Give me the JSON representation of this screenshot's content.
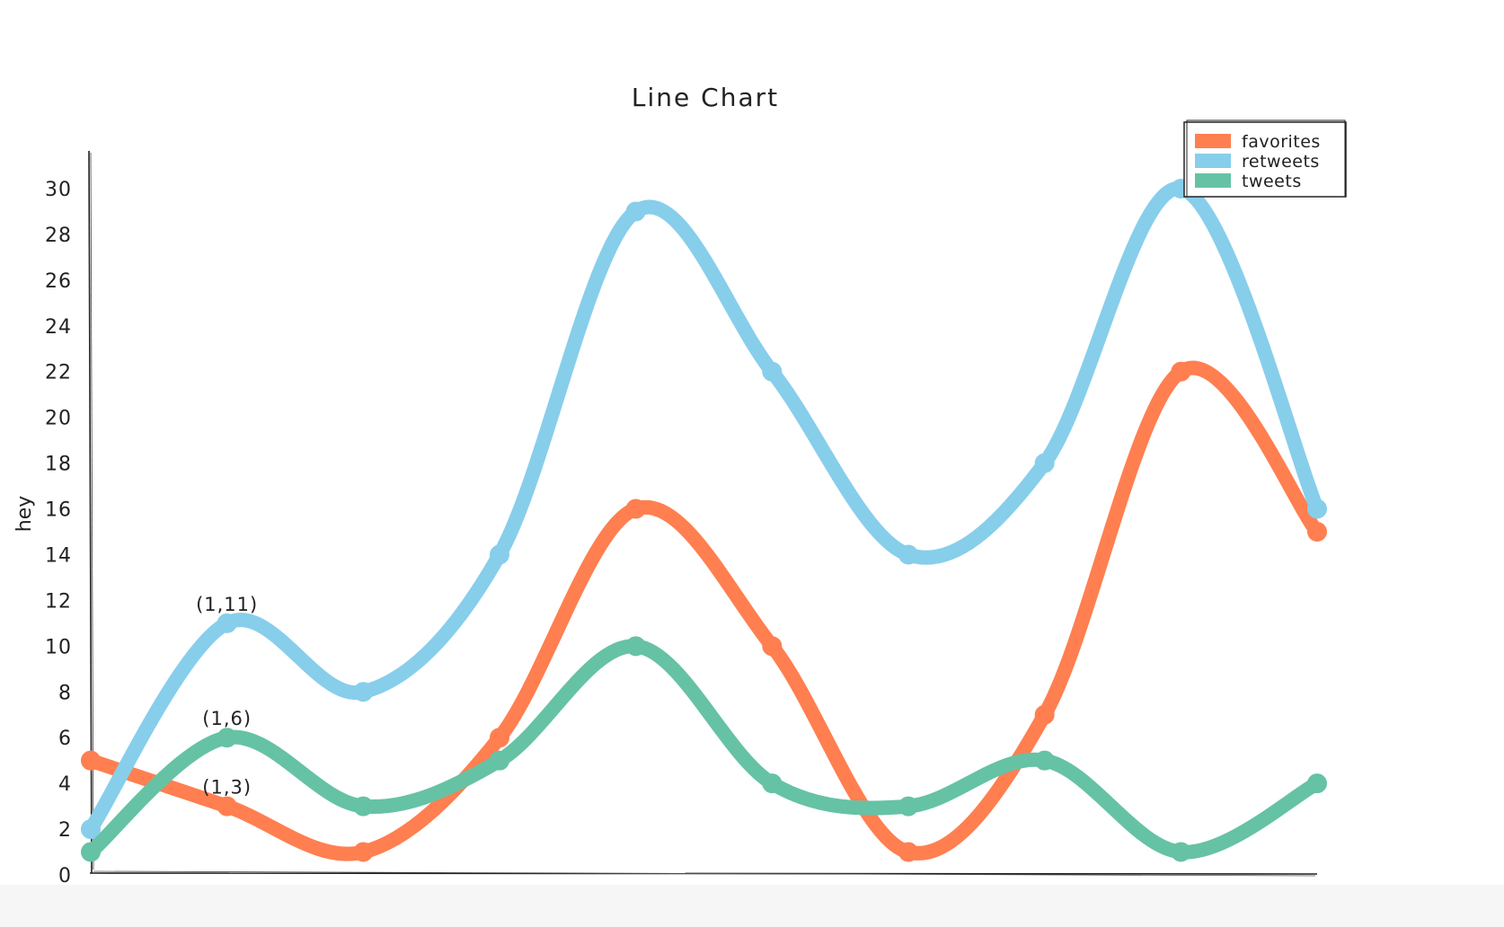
{
  "chart_data": {
    "type": "line",
    "title": "Line Chart",
    "xlabel": "",
    "ylabel": "hey",
    "ylim": [
      0,
      30
    ],
    "yticks": [
      "0",
      "2",
      "4",
      "6",
      "8",
      "10",
      "12",
      "14",
      "16",
      "18",
      "20",
      "22",
      "24",
      "26",
      "28",
      "30"
    ],
    "x": [
      0,
      1,
      2,
      3,
      4,
      5,
      6,
      7,
      8,
      9
    ],
    "legend_position": "top-right",
    "grid": false,
    "series": [
      {
        "name": "favorites",
        "color": "#ff7f50",
        "values": [
          5,
          3,
          1,
          6,
          16,
          10,
          1,
          7,
          22,
          15
        ]
      },
      {
        "name": "retweets",
        "color": "#87ceeb",
        "values": [
          2,
          11,
          8,
          14,
          29,
          22,
          14,
          18,
          30,
          16
        ]
      },
      {
        "name": "tweets",
        "color": "#66c2a5",
        "values": [
          1,
          6,
          3,
          5,
          10,
          4,
          3,
          5,
          1,
          4
        ]
      }
    ],
    "annotations": [
      {
        "text": "(1,11)",
        "x": 1,
        "y": 11
      },
      {
        "text": "(1,6)",
        "x": 1,
        "y": 6
      },
      {
        "text": "(1,3)",
        "x": 1,
        "y": 3
      }
    ]
  }
}
